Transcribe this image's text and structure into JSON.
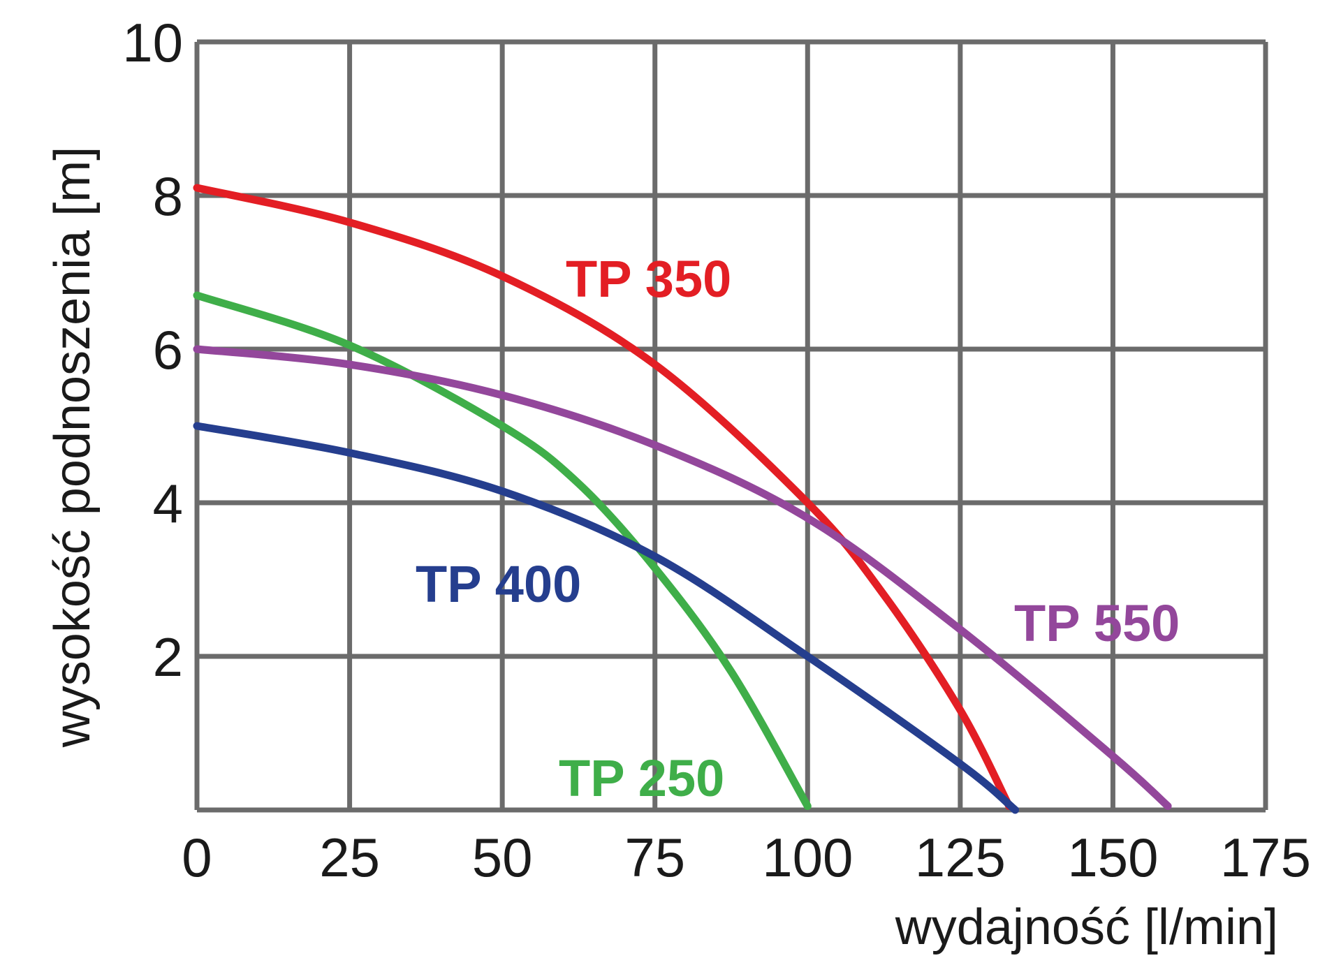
{
  "chart_data": {
    "type": "line",
    "xlabel": "wydajność  [l/min]",
    "ylabel": "wysokość podnoszenia [m]",
    "xlim": [
      0,
      175
    ],
    "ylim": [
      0,
      10
    ],
    "x_ticks": [
      "0",
      "25",
      "50",
      "75",
      "100",
      "125",
      "150",
      "175"
    ],
    "y_ticks": [
      "2",
      "4",
      "6",
      "8",
      "10"
    ],
    "grid": true,
    "series": [
      {
        "name": "TP 350",
        "color": "#e31e24",
        "x": [
          0,
          25,
          50,
          75,
          100,
          112.5,
          125,
          133
        ],
        "y": [
          8.1,
          7.65,
          6.95,
          5.8,
          4.0,
          2.8,
          1.3,
          0.05
        ]
      },
      {
        "name": "TP 250",
        "color": "#3fae49",
        "x": [
          0,
          25,
          50,
          62.5,
          75,
          87.5,
          100
        ],
        "y": [
          6.7,
          6.05,
          5.0,
          4.25,
          3.15,
          1.8,
          0.05
        ]
      },
      {
        "name": "TP 550",
        "color": "#93479b",
        "x": [
          0,
          25,
          50,
          75,
          100,
          125,
          150,
          159
        ],
        "y": [
          6.0,
          5.8,
          5.4,
          4.75,
          3.8,
          2.35,
          0.7,
          0.05
        ]
      },
      {
        "name": "TP 400",
        "color": "#253e8e",
        "x": [
          0,
          25,
          50,
          75,
          100,
          125,
          134
        ],
        "y": [
          5.0,
          4.65,
          4.15,
          3.3,
          2.0,
          0.6,
          0.0
        ]
      }
    ]
  }
}
